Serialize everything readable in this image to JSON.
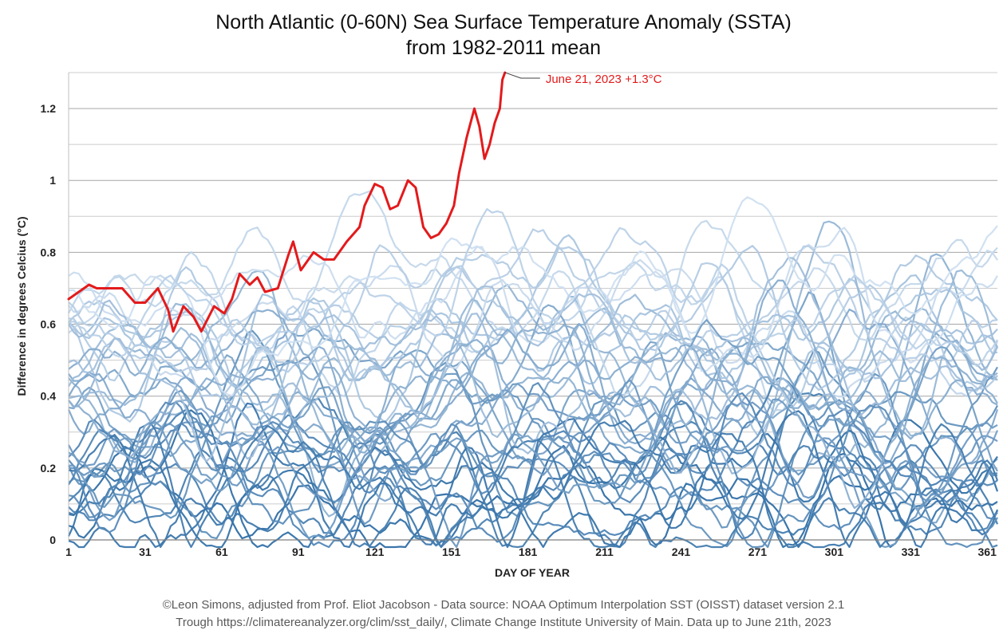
{
  "chart_data": {
    "type": "line",
    "title_line1": "North Atlantic (0-60N) Sea Surface Temperature Anomaly (SSTA)",
    "title_line2": "from 1982-2011 mean",
    "xlabel": "DAY OF YEAR",
    "ylabel": "Difference in degrees Celcius (°C)",
    "xlim": [
      1,
      365
    ],
    "ylim": [
      0,
      1.3
    ],
    "x_ticks": [
      1,
      31,
      61,
      91,
      121,
      151,
      181,
      211,
      241,
      271,
      301,
      331,
      361
    ],
    "y_ticks": [
      0,
      0.2,
      0.4,
      0.6,
      0.8,
      1,
      1.2
    ],
    "y_gridlines": [
      0.1,
      0.2,
      0.3,
      0.4,
      0.5,
      0.6,
      0.7,
      0.8,
      0.9,
      1.0,
      1.1,
      1.2,
      1.3
    ],
    "grid": true,
    "highlight_series": {
      "color": "#e31a1c",
      "points": [
        [
          1,
          0.67
        ],
        [
          5,
          0.69
        ],
        [
          9,
          0.71
        ],
        [
          12,
          0.7
        ],
        [
          18,
          0.7
        ],
        [
          22,
          0.7
        ],
        [
          27,
          0.66
        ],
        [
          31,
          0.66
        ],
        [
          36,
          0.7
        ],
        [
          40,
          0.64
        ],
        [
          42,
          0.58
        ],
        [
          46,
          0.65
        ],
        [
          50,
          0.62
        ],
        [
          53,
          0.58
        ],
        [
          58,
          0.65
        ],
        [
          62,
          0.63
        ],
        [
          65,
          0.67
        ],
        [
          68,
          0.74
        ],
        [
          72,
          0.71
        ],
        [
          75,
          0.73
        ],
        [
          78,
          0.69
        ],
        [
          83,
          0.7
        ],
        [
          87,
          0.79
        ],
        [
          89,
          0.83
        ],
        [
          92,
          0.75
        ],
        [
          97,
          0.8
        ],
        [
          101,
          0.78
        ],
        [
          105,
          0.78
        ],
        [
          110,
          0.83
        ],
        [
          115,
          0.87
        ],
        [
          117,
          0.93
        ],
        [
          121,
          0.99
        ],
        [
          124,
          0.98
        ],
        [
          127,
          0.92
        ],
        [
          130,
          0.93
        ],
        [
          134,
          1.0
        ],
        [
          137,
          0.98
        ],
        [
          140,
          0.87
        ],
        [
          143,
          0.84
        ],
        [
          146,
          0.85
        ],
        [
          149,
          0.88
        ],
        [
          152,
          0.93
        ],
        [
          154,
          1.02
        ],
        [
          157,
          1.12
        ],
        [
          160,
          1.2
        ],
        [
          162,
          1.15
        ],
        [
          164,
          1.06
        ],
        [
          166,
          1.1
        ],
        [
          168,
          1.16
        ],
        [
          170,
          1.2
        ],
        [
          171,
          1.28
        ],
        [
          172,
          1.3
        ]
      ]
    },
    "annotation": "June 21, 2023 +1.3°C",
    "background_series": {
      "count": 41,
      "color_light": "#cfdff0",
      "color_dark": "#2f6ea6",
      "value_range": [
        0,
        0.97
      ]
    },
    "credit_line1": "©Leon Simons, adjusted from Prof. Eliot Jacobson - Data source: NOAA Optimum Interpolation SST (OISST) dataset version 2.1",
    "credit_line2": "Trough https://climatereanalyzer.org/clim/sst_daily/, Climate Change Institute University of Main. Data up to June 21th, 2023"
  }
}
